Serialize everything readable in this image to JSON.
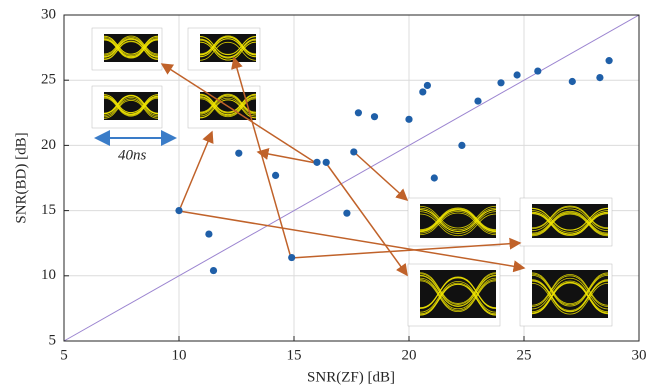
{
  "chart_data": {
    "type": "scatter",
    "x": [
      10.0,
      11.3,
      11.5,
      12.6,
      14.2,
      14.9,
      16.0,
      16.4,
      17.3,
      17.6,
      17.8,
      18.5,
      20.0,
      20.6,
      20.8,
      21.1,
      22.3,
      23.0,
      24.0,
      24.7,
      25.6,
      27.1,
      28.3,
      28.7
    ],
    "values": [
      15.0,
      13.2,
      10.4,
      19.4,
      17.7,
      11.4,
      18.7,
      18.7,
      14.8,
      19.5,
      22.5,
      22.2,
      22.0,
      24.1,
      24.6,
      17.5,
      20.0,
      23.4,
      24.8,
      25.4,
      25.7,
      24.9,
      25.2,
      26.5
    ],
    "color": "#1f5fa8",
    "xlabel": "SNR(ZF) [dB]",
    "ylabel": "SNR(BD) [dB]",
    "annotation": "40ns",
    "xlim": [
      5,
      30
    ],
    "ylim": [
      5,
      30
    ],
    "xticks": [
      5,
      10,
      15,
      20,
      25,
      30
    ],
    "yticks": [
      5,
      10,
      15,
      20,
      25,
      30
    ],
    "grid": true
  }
}
